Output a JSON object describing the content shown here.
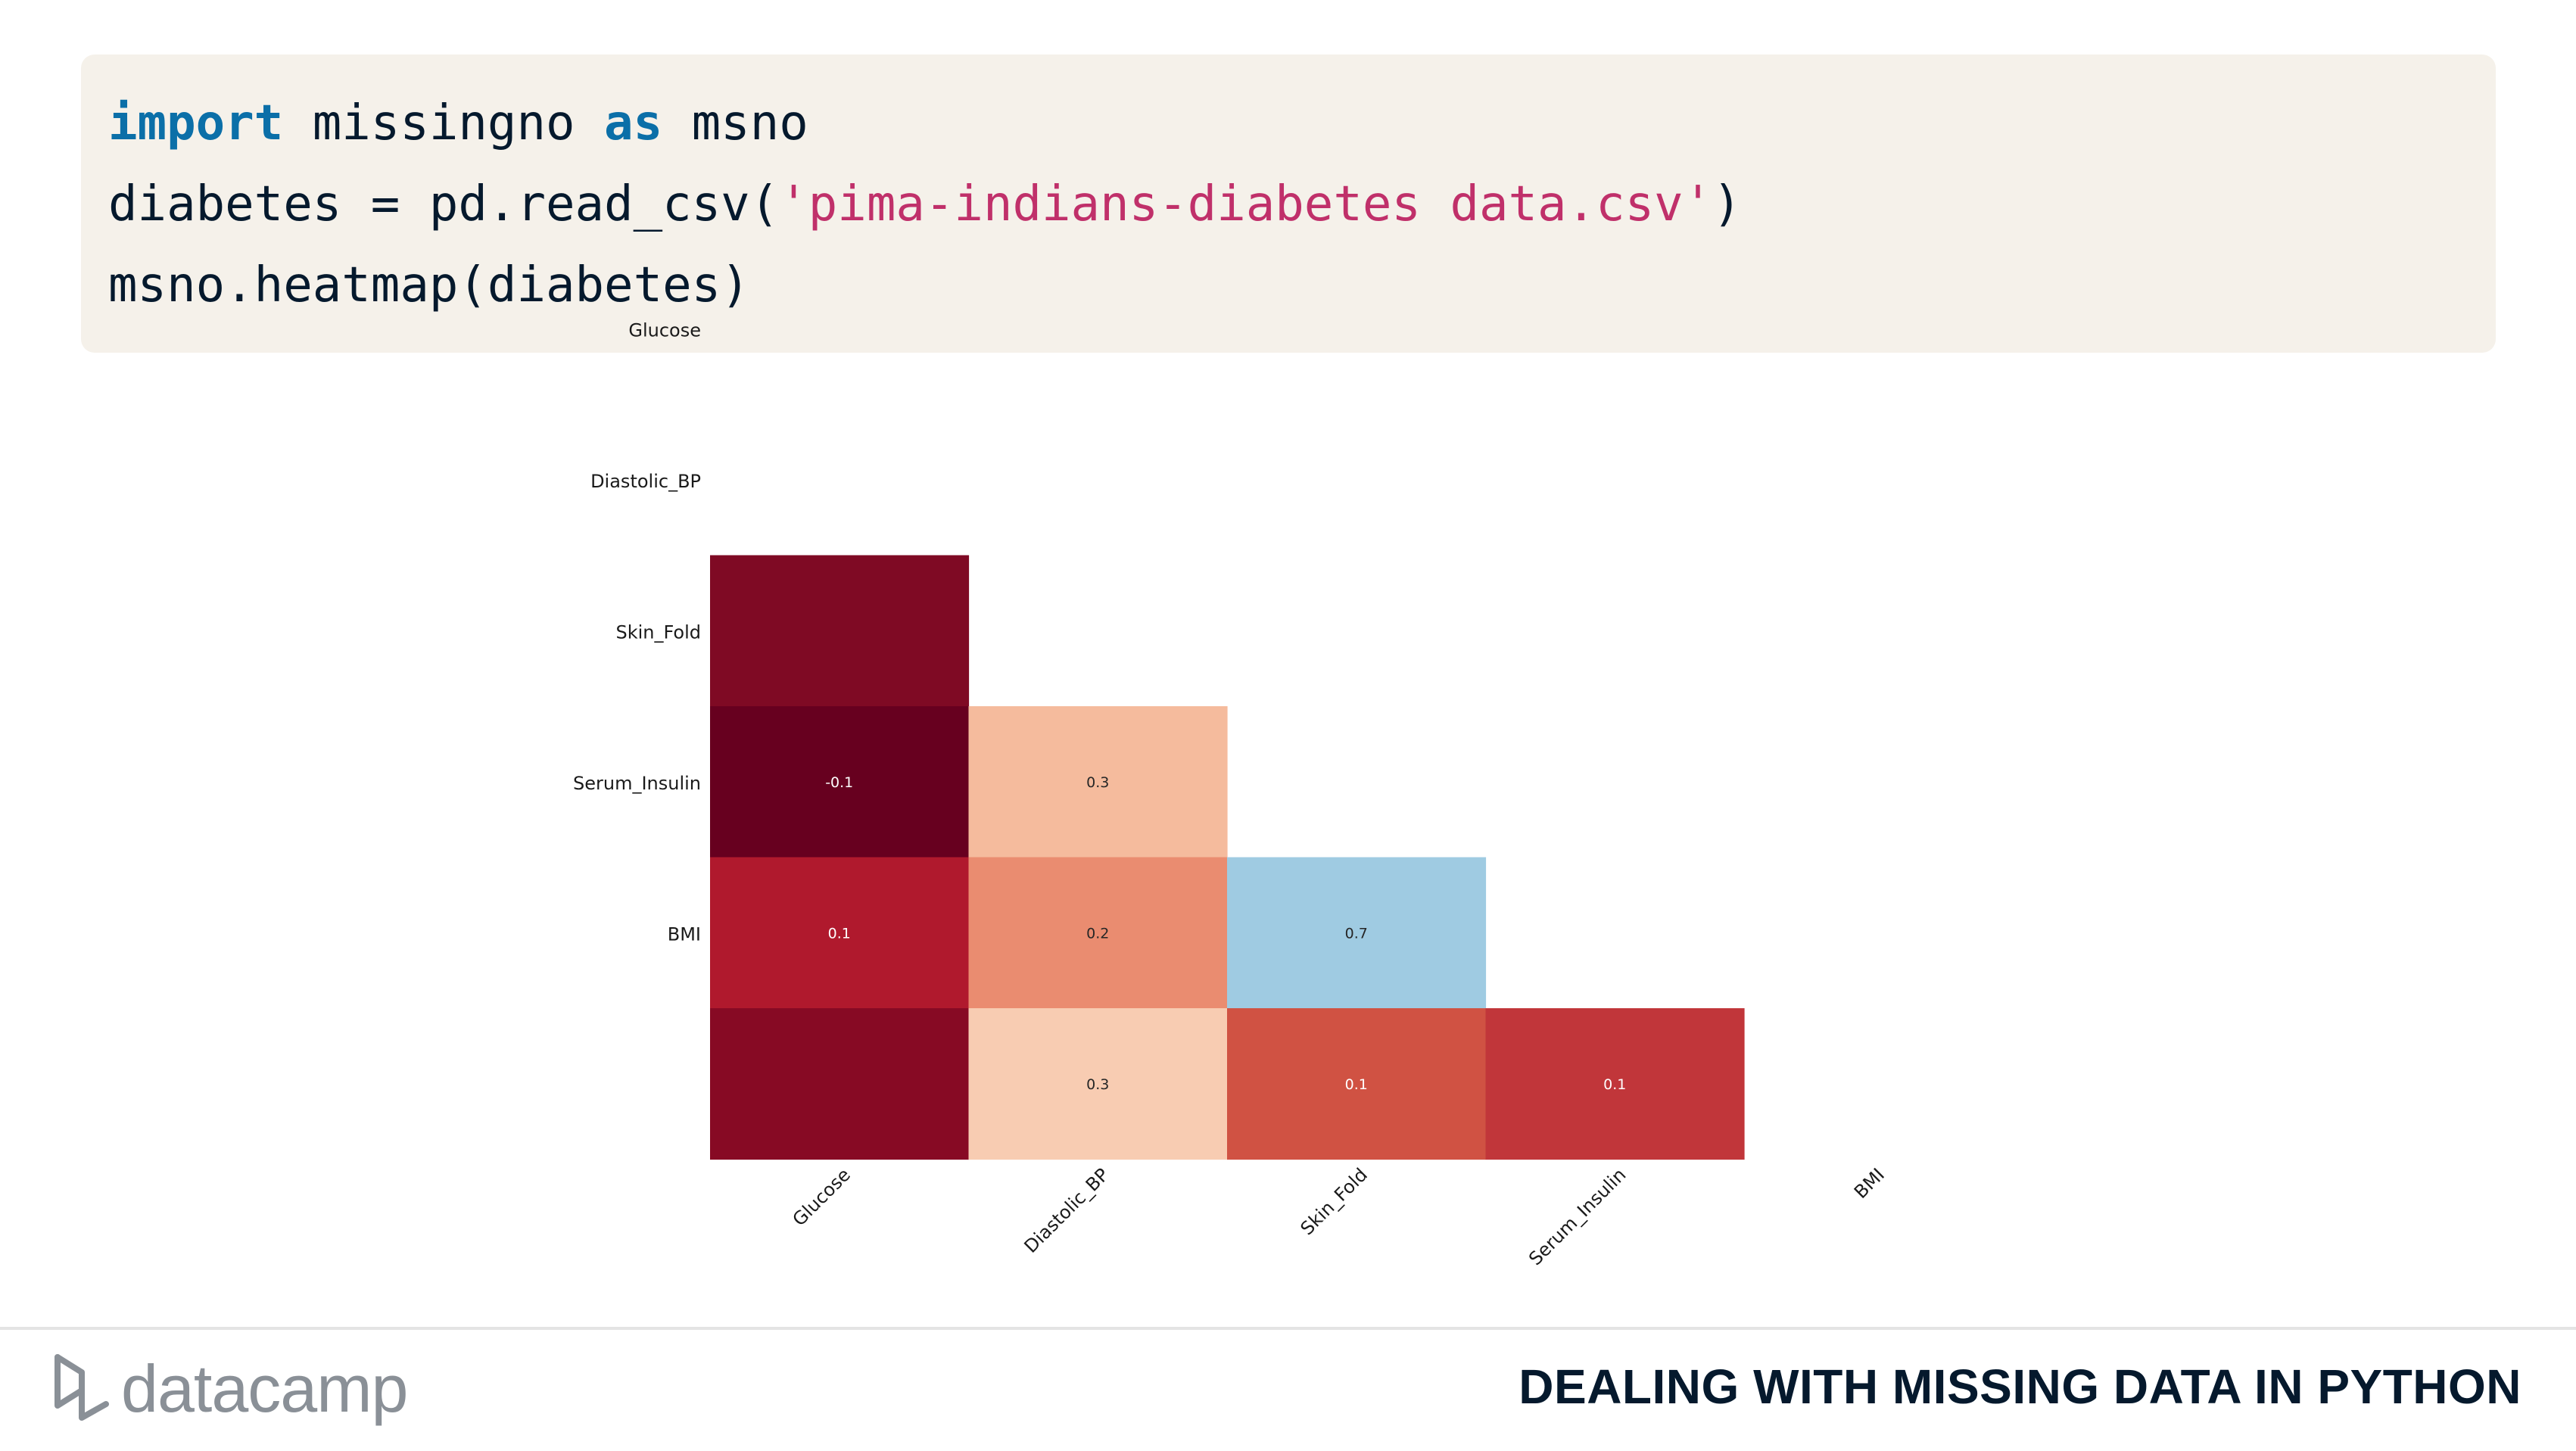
{
  "code": {
    "line1": {
      "kw1": "import",
      "mid": " missingno ",
      "kw2": "as",
      "end": " msno"
    },
    "line2": {
      "start": "diabetes = pd.read_csv(",
      "str": "'pima-indians-diabetes data.csv'",
      "end": ")"
    },
    "line3": "msno.heatmap(diabetes)"
  },
  "chart_data": {
    "type": "heatmap",
    "title": "",
    "xlabel": "",
    "ylabel": "",
    "row_labels": [
      "Glucose",
      "Diastolic_BP",
      "Skin_Fold",
      "Serum_Insulin",
      "BMI"
    ],
    "col_labels": [
      "Glucose",
      "Diastolic_BP",
      "Skin_Fold",
      "Serum_Insulin",
      "BMI"
    ],
    "cells": [
      {
        "row": 1,
        "col": 0,
        "value": -0.03,
        "label": "",
        "color": "#7f0a24"
      },
      {
        "row": 2,
        "col": 0,
        "value": -0.1,
        "label": "-0.1",
        "color": "#67001f"
      },
      {
        "row": 2,
        "col": 1,
        "value": 0.3,
        "label": "0.3",
        "color": "#f5bb9d"
      },
      {
        "row": 3,
        "col": 0,
        "value": 0.1,
        "label": "0.1",
        "color": "#b0192d"
      },
      {
        "row": 3,
        "col": 1,
        "value": 0.2,
        "label": "0.2",
        "color": "#ea8c70"
      },
      {
        "row": 3,
        "col": 2,
        "value": 0.7,
        "label": "0.7",
        "color": "#9fcbe2"
      },
      {
        "row": 4,
        "col": 0,
        "value": 0.0,
        "label": "",
        "color": "#870a24"
      },
      {
        "row": 4,
        "col": 1,
        "value": 0.3,
        "label": "0.3",
        "color": "#f8ccb2"
      },
      {
        "row": 4,
        "col": 2,
        "value": 0.1,
        "label": "0.1",
        "color": "#d05243"
      },
      {
        "row": 4,
        "col": 3,
        "value": 0.1,
        "label": "0.1",
        "color": "#c1363a"
      }
    ],
    "colormap": "RdBu",
    "vmin": -1,
    "vmax": 1
  },
  "footer": {
    "brand": "datacamp",
    "course_title": "DEALING WITH MISSING DATA IN PYTHON"
  }
}
